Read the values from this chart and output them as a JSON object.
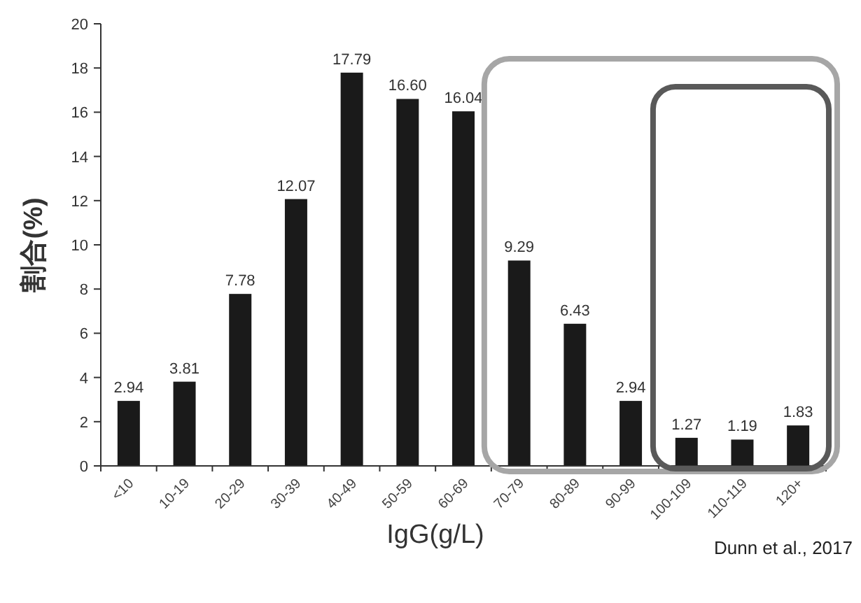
{
  "chart_data": {
    "type": "bar",
    "categories": [
      "<10",
      "10-19",
      "20-29",
      "30-39",
      "40-49",
      "50-59",
      "60-69",
      "70-79",
      "80-89",
      "90-99",
      "100-109",
      "110-119",
      "120+"
    ],
    "values": [
      2.94,
      3.81,
      7.78,
      12.07,
      17.79,
      16.6,
      16.04,
      9.29,
      6.43,
      2.94,
      1.27,
      1.19,
      1.83
    ],
    "color": "#1a1a1a",
    "value_labels": [
      "2.94",
      "3.81",
      "7.78",
      "12.07",
      "17.79",
      "16.60",
      "16.04",
      "9.29",
      "6.43",
      "2.94",
      "1.27",
      "1.19",
      "1.83"
    ],
    "ylim": [
      0,
      20
    ],
    "yticks": [
      0,
      2,
      4,
      6,
      8,
      10,
      12,
      14,
      16,
      18,
      20
    ],
    "xlabel": "IgG(g/L)",
    "ylabel": "割合(%)",
    "annotations": [
      "Dunn et al., 2017"
    ],
    "grid": false
  }
}
